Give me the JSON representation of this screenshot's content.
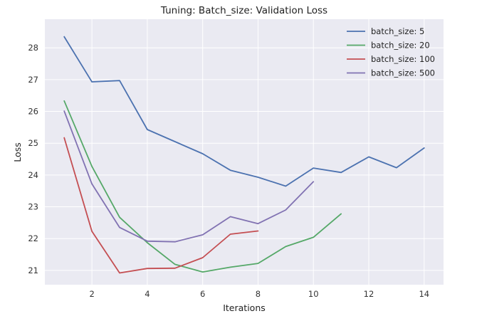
{
  "chart_data": {
    "type": "line",
    "title": "Tuning: Batch_size: Validation Loss",
    "xlabel": "Iterations",
    "ylabel": "Loss",
    "xlim": [
      0.3,
      14.7
    ],
    "ylim": [
      20.55,
      28.9
    ],
    "xticks": [
      2,
      4,
      6,
      8,
      10,
      12,
      14
    ],
    "yticks": [
      21,
      22,
      23,
      24,
      25,
      26,
      27,
      28
    ],
    "grid": true,
    "background": "#eaeaf2",
    "legend_position": "top-right",
    "series": [
      {
        "name": "batch_size: 5",
        "color": "#4c72b0",
        "x": [
          1,
          2,
          3,
          4,
          5,
          6,
          7,
          8,
          9,
          10,
          11,
          12,
          13,
          14
        ],
        "y": [
          28.35,
          26.93,
          26.97,
          25.43,
          25.05,
          24.67,
          24.15,
          23.93,
          23.65,
          24.22,
          24.08,
          24.57,
          24.23,
          24.85
        ]
      },
      {
        "name": "batch_size: 20",
        "color": "#55a868",
        "x": [
          1,
          2,
          3,
          4,
          5,
          6,
          7,
          8,
          9,
          10,
          11
        ],
        "y": [
          26.33,
          24.27,
          22.67,
          21.87,
          21.19,
          20.95,
          21.1,
          21.22,
          21.75,
          22.04,
          22.78
        ]
      },
      {
        "name": "batch_size: 100",
        "color": "#c44e52",
        "x": [
          1,
          2,
          3,
          4,
          5,
          6,
          7,
          8
        ],
        "y": [
          25.17,
          22.23,
          20.92,
          21.06,
          21.07,
          21.4,
          22.14,
          22.24
        ]
      },
      {
        "name": "batch_size: 500",
        "color": "#8172b2",
        "x": [
          1,
          2,
          3,
          4,
          5,
          6,
          7,
          8,
          9,
          10
        ],
        "y": [
          26.01,
          23.72,
          22.35,
          21.92,
          21.9,
          22.12,
          22.69,
          22.47,
          22.9,
          23.79
        ]
      }
    ]
  }
}
